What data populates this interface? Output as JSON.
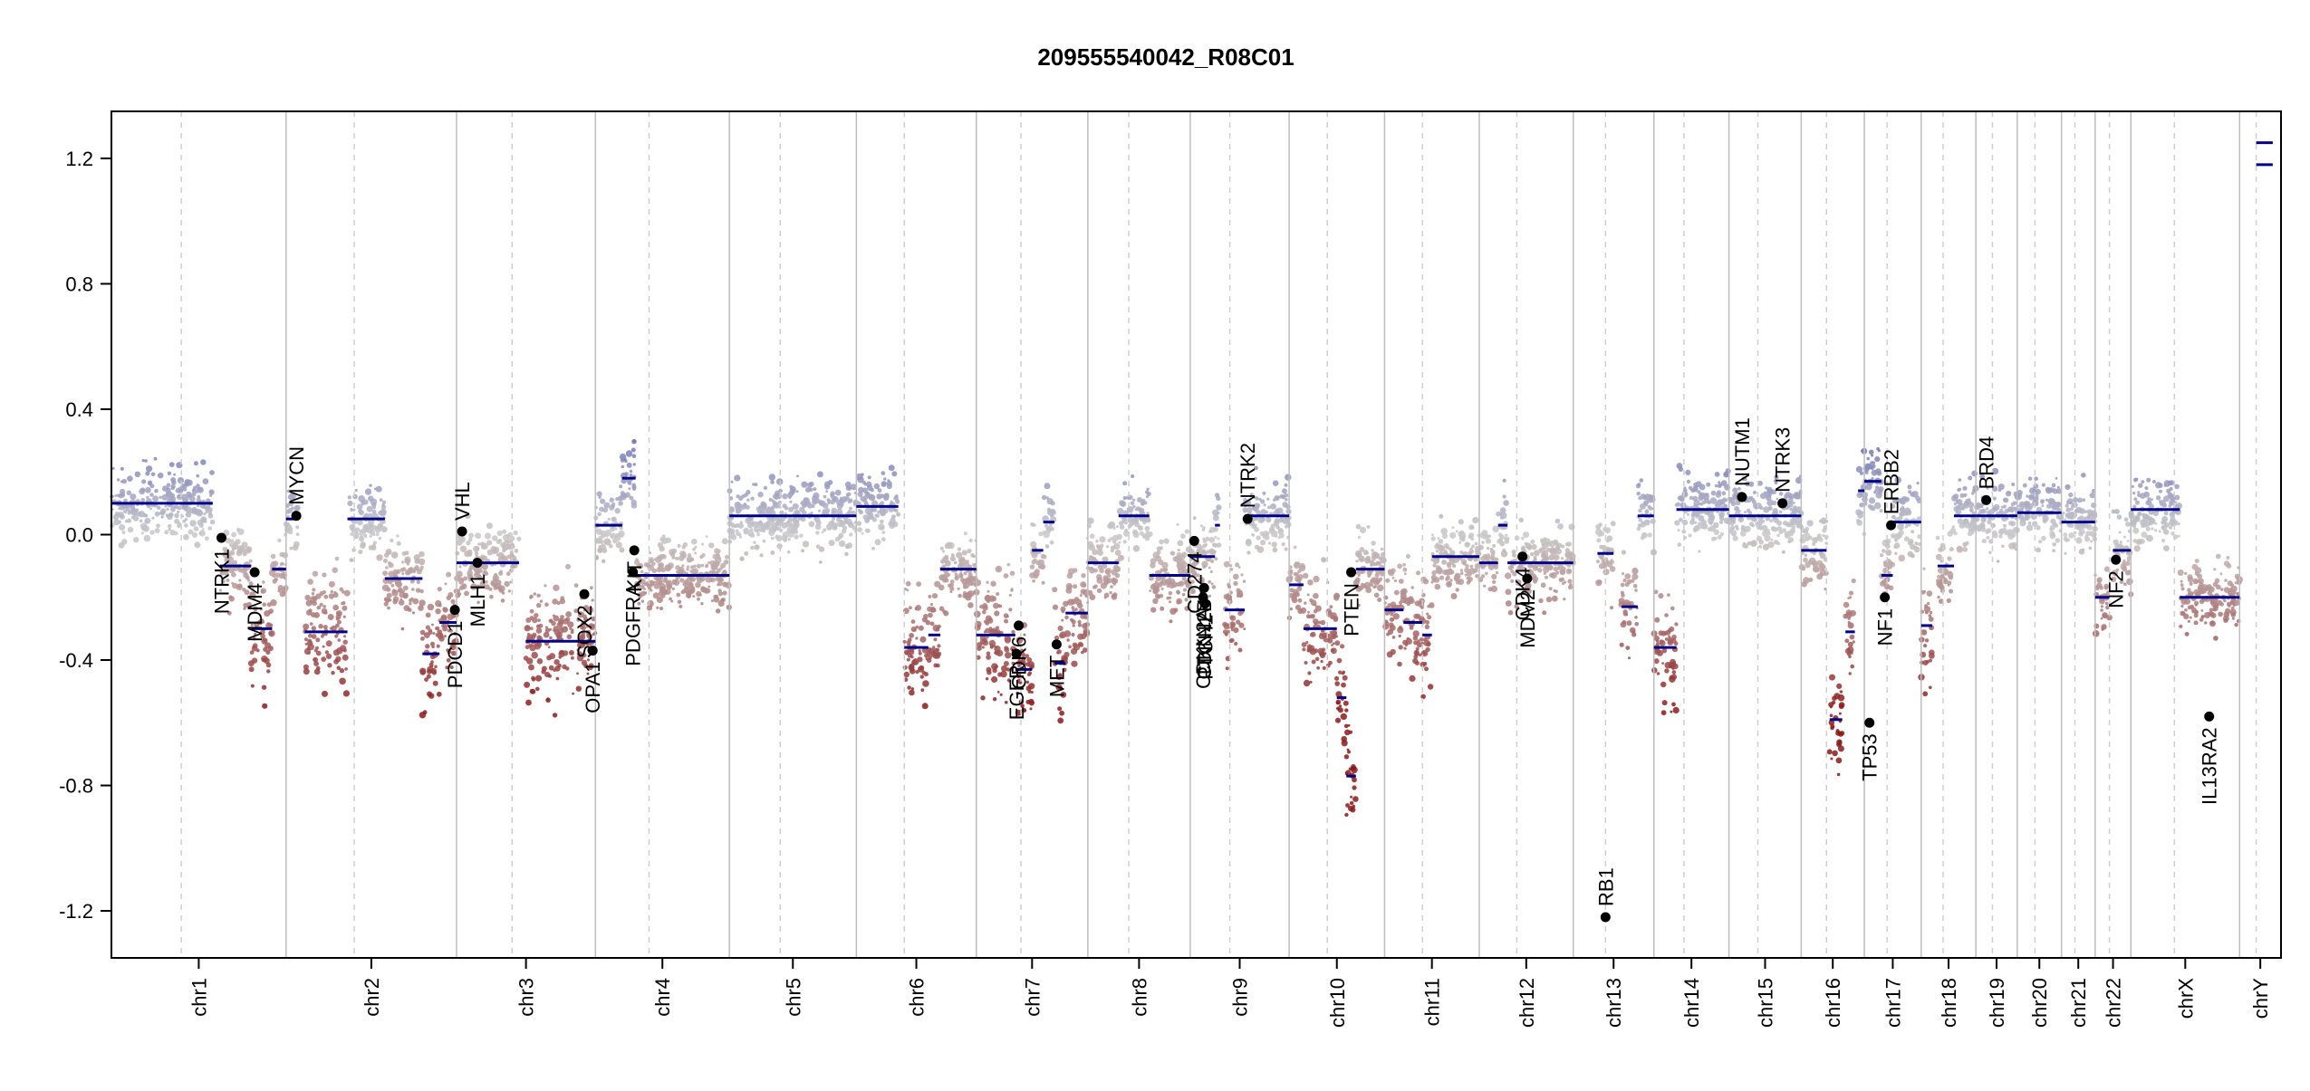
{
  "chart_data": {
    "type": "scatter",
    "title": "209555540042_R08C01",
    "xlabel": "",
    "ylabel": "",
    "ylim": [
      -1.35,
      1.35
    ],
    "yticks": [
      -1.2,
      -0.8,
      -0.4,
      0.0,
      0.4,
      0.8,
      1.2
    ],
    "ytick_labels": [
      "-1.2",
      "-0.8",
      "-0.4",
      "0.0",
      "0.4",
      "0.8",
      "1.2"
    ],
    "grid": false,
    "colors": {
      "positive": "#6f72b8",
      "neutral": "#c9c9c9",
      "negative": "#8b1a1a",
      "segment": "#00008b",
      "gene_point": "#000000",
      "boundary": "#bdbdbd"
    },
    "chromosomes": [
      {
        "name": "chr1",
        "size": 249
      },
      {
        "name": "chr2",
        "size": 243
      },
      {
        "name": "chr3",
        "size": 198
      },
      {
        "name": "chr4",
        "size": 191
      },
      {
        "name": "chr5",
        "size": 181
      },
      {
        "name": "chr6",
        "size": 171
      },
      {
        "name": "chr7",
        "size": 159
      },
      {
        "name": "chr8",
        "size": 146
      },
      {
        "name": "chr9",
        "size": 141
      },
      {
        "name": "chr10",
        "size": 136
      },
      {
        "name": "chr11",
        "size": 135
      },
      {
        "name": "chr12",
        "size": 134
      },
      {
        "name": "chr13",
        "size": 115
      },
      {
        "name": "chr14",
        "size": 107
      },
      {
        "name": "chr15",
        "size": 103
      },
      {
        "name": "chr16",
        "size": 90
      },
      {
        "name": "chr17",
        "size": 81
      },
      {
        "name": "chr18",
        "size": 78
      },
      {
        "name": "chr19",
        "size": 59
      },
      {
        "name": "chr20",
        "size": 63
      },
      {
        "name": "chr21",
        "size": 48
      },
      {
        "name": "chr22",
        "size": 51
      },
      {
        "name": "chrX",
        "size": 155
      },
      {
        "name": "chrY",
        "size": 59
      }
    ],
    "segments": [
      {
        "chr": "chr1",
        "start": 0.0,
        "end": 0.58,
        "value": 0.1
      },
      {
        "chr": "chr1",
        "start": 0.62,
        "end": 0.8,
        "value": -0.1
      },
      {
        "chr": "chr1",
        "start": 0.8,
        "end": 0.92,
        "value": -0.3
      },
      {
        "chr": "chr1",
        "start": 0.92,
        "end": 1.0,
        "value": -0.11
      },
      {
        "chr": "chr2",
        "start": 0.0,
        "end": 0.07,
        "value": 0.05
      },
      {
        "chr": "chr2",
        "start": 0.11,
        "end": 0.36,
        "value": -0.31
      },
      {
        "chr": "chr2",
        "start": 0.36,
        "end": 0.58,
        "value": 0.05
      },
      {
        "chr": "chr2",
        "start": 0.58,
        "end": 0.8,
        "value": -0.14
      },
      {
        "chr": "chr2",
        "start": 0.8,
        "end": 0.9,
        "value": -0.38
      },
      {
        "chr": "chr2",
        "start": 0.9,
        "end": 1.0,
        "value": -0.28
      },
      {
        "chr": "chr3",
        "start": 0.0,
        "end": 0.45,
        "value": -0.09
      },
      {
        "chr": "chr3",
        "start": 0.5,
        "end": 1.0,
        "value": -0.34
      },
      {
        "chr": "chr4",
        "start": 0.0,
        "end": 0.2,
        "value": 0.03
      },
      {
        "chr": "chr4",
        "start": 0.2,
        "end": 0.3,
        "value": 0.18
      },
      {
        "chr": "chr4",
        "start": 0.3,
        "end": 1.0,
        "value": -0.13
      },
      {
        "chr": "chr5",
        "start": 0.0,
        "end": 1.0,
        "value": 0.06
      },
      {
        "chr": "chr6",
        "start": 0.0,
        "end": 0.35,
        "value": 0.09
      },
      {
        "chr": "chr6",
        "start": 0.4,
        "end": 0.6,
        "value": -0.36
      },
      {
        "chr": "chr6",
        "start": 0.6,
        "end": 0.7,
        "value": -0.32
      },
      {
        "chr": "chr6",
        "start": 0.7,
        "end": 1.0,
        "value": -0.11
      },
      {
        "chr": "chr7",
        "start": 0.0,
        "end": 0.35,
        "value": -0.32
      },
      {
        "chr": "chr7",
        "start": 0.35,
        "end": 0.5,
        "value": -0.43
      },
      {
        "chr": "chr7",
        "start": 0.5,
        "end": 0.6,
        "value": -0.05
      },
      {
        "chr": "chr7",
        "start": 0.6,
        "end": 0.7,
        "value": 0.04
      },
      {
        "chr": "chr7",
        "start": 0.7,
        "end": 0.8,
        "value": -0.41
      },
      {
        "chr": "chr7",
        "start": 0.8,
        "end": 1.0,
        "value": -0.25
      },
      {
        "chr": "chr8",
        "start": 0.0,
        "end": 0.3,
        "value": -0.09
      },
      {
        "chr": "chr8",
        "start": 0.3,
        "end": 0.6,
        "value": 0.06
      },
      {
        "chr": "chr8",
        "start": 0.6,
        "end": 1.0,
        "value": -0.13
      },
      {
        "chr": "chr9",
        "start": 0.0,
        "end": 0.25,
        "value": -0.07
      },
      {
        "chr": "chr9",
        "start": 0.25,
        "end": 0.3,
        "value": 0.03
      },
      {
        "chr": "chr9",
        "start": 0.35,
        "end": 0.55,
        "value": -0.24
      },
      {
        "chr": "chr9",
        "start": 0.55,
        "end": 1.0,
        "value": 0.06
      },
      {
        "chr": "chr10",
        "start": 0.0,
        "end": 0.15,
        "value": -0.16
      },
      {
        "chr": "chr10",
        "start": 0.15,
        "end": 0.5,
        "value": -0.3
      },
      {
        "chr": "chr10",
        "start": 0.5,
        "end": 0.6,
        "value": -0.52
      },
      {
        "chr": "chr10",
        "start": 0.6,
        "end": 0.7,
        "value": -0.77
      },
      {
        "chr": "chr10",
        "start": 0.7,
        "end": 1.0,
        "value": -0.11
      },
      {
        "chr": "chr11",
        "start": 0.0,
        "end": 0.2,
        "value": -0.24
      },
      {
        "chr": "chr11",
        "start": 0.2,
        "end": 0.4,
        "value": -0.28
      },
      {
        "chr": "chr11",
        "start": 0.4,
        "end": 0.5,
        "value": -0.32
      },
      {
        "chr": "chr11",
        "start": 0.5,
        "end": 1.0,
        "value": -0.07
      },
      {
        "chr": "chr12",
        "start": 0.0,
        "end": 0.2,
        "value": -0.09
      },
      {
        "chr": "chr12",
        "start": 0.2,
        "end": 0.3,
        "value": 0.03
      },
      {
        "chr": "chr12",
        "start": 0.3,
        "end": 1.0,
        "value": -0.09
      },
      {
        "chr": "chr13",
        "start": 0.3,
        "end": 0.5,
        "value": -0.06
      },
      {
        "chr": "chr13",
        "start": 0.6,
        "end": 0.8,
        "value": -0.23
      },
      {
        "chr": "chr13",
        "start": 0.8,
        "end": 1.0,
        "value": 0.06
      },
      {
        "chr": "chr14",
        "start": 0.0,
        "end": 0.3,
        "value": -0.36
      },
      {
        "chr": "chr14",
        "start": 0.3,
        "end": 1.0,
        "value": 0.08
      },
      {
        "chr": "chr15",
        "start": 0.0,
        "end": 0.2,
        "value": 0.06
      },
      {
        "chr": "chr15",
        "start": 0.2,
        "end": 1.0,
        "value": 0.06
      },
      {
        "chr": "chr16",
        "start": 0.0,
        "end": 0.4,
        "value": -0.05
      },
      {
        "chr": "chr16",
        "start": 0.45,
        "end": 0.65,
        "value": -0.59
      },
      {
        "chr": "chr16",
        "start": 0.7,
        "end": 0.85,
        "value": -0.31
      },
      {
        "chr": "chr16",
        "start": 0.9,
        "end": 1.0,
        "value": 0.14
      },
      {
        "chr": "chr17",
        "start": 0.0,
        "end": 0.3,
        "value": 0.17
      },
      {
        "chr": "chr17",
        "start": 0.3,
        "end": 0.5,
        "value": -0.13
      },
      {
        "chr": "chr17",
        "start": 0.5,
        "end": 1.0,
        "value": 0.04
      },
      {
        "chr": "chr18",
        "start": 0.0,
        "end": 0.2,
        "value": -0.29
      },
      {
        "chr": "chr18",
        "start": 0.3,
        "end": 0.6,
        "value": -0.1
      },
      {
        "chr": "chr18",
        "start": 0.6,
        "end": 1.0,
        "value": 0.06
      },
      {
        "chr": "chr19",
        "start": 0.0,
        "end": 1.0,
        "value": 0.06
      },
      {
        "chr": "chr20",
        "start": 0.0,
        "end": 1.0,
        "value": 0.07
      },
      {
        "chr": "chr21",
        "start": 0.0,
        "end": 1.0,
        "value": 0.04
      },
      {
        "chr": "chr22",
        "start": 0.0,
        "end": 0.4,
        "value": -0.2
      },
      {
        "chr": "chr22",
        "start": 0.5,
        "end": 1.0,
        "value": -0.05
      },
      {
        "chr": "chrX",
        "start": 0.0,
        "end": 0.45,
        "value": 0.08
      },
      {
        "chr": "chrX",
        "start": 0.45,
        "end": 1.0,
        "value": -0.2
      },
      {
        "chr": "chrY",
        "start": 0.4,
        "end": 0.8,
        "value": 1.25
      },
      {
        "chr": "chrY",
        "start": 0.4,
        "end": 0.8,
        "value": 1.18
      }
    ],
    "genes": [
      {
        "name": "NTRK1",
        "chr": "chr1",
        "pos": 0.63,
        "value": -0.01,
        "label_side": "below"
      },
      {
        "name": "MDM4",
        "chr": "chr1",
        "pos": 0.82,
        "value": -0.12,
        "label_side": "below"
      },
      {
        "name": "MYCN",
        "chr": "chr2",
        "pos": 0.06,
        "value": 0.06,
        "label_side": "above"
      },
      {
        "name": "PDCD1",
        "chr": "chr2",
        "pos": 0.99,
        "value": -0.24,
        "label_side": "below"
      },
      {
        "name": "VHL",
        "chr": "chr3",
        "pos": 0.04,
        "value": 0.01,
        "label_side": "above"
      },
      {
        "name": "MLH1",
        "chr": "chr3",
        "pos": 0.15,
        "value": -0.09,
        "label_side": "below"
      },
      {
        "name": "SOX2",
        "chr": "chr3",
        "pos": 0.92,
        "value": -0.19,
        "label_side": "below"
      },
      {
        "name": "OPA1",
        "chr": "chr3",
        "pos": 0.98,
        "value": -0.37,
        "label_side": "below"
      },
      {
        "name": "PDGFRA",
        "chr": "chr4",
        "pos": 0.28,
        "value": -0.12,
        "label_side": "below"
      },
      {
        "name": "KIT",
        "chr": "chr4",
        "pos": 0.29,
        "value": -0.05,
        "label_side": "below"
      },
      {
        "name": "EGFR",
        "chr": "chr7",
        "pos": 0.36,
        "value": -0.38,
        "label_side": "below"
      },
      {
        "name": "CDK6",
        "chr": "chr7",
        "pos": 0.38,
        "value": -0.29,
        "label_side": "below"
      },
      {
        "name": "MET",
        "chr": "chr7",
        "pos": 0.72,
        "value": -0.35,
        "label_side": "below"
      },
      {
        "name": "CDKN2A",
        "chr": "chr9",
        "pos": 0.13,
        "value": -0.2,
        "label_side": "below"
      },
      {
        "name": "CDKN2B",
        "chr": "chr9",
        "pos": 0.14,
        "value": -0.17,
        "label_side": "below"
      },
      {
        "name": "PTCH1",
        "chr": "chr9",
        "pos": 0.15,
        "value": -0.22,
        "label_side": "below"
      },
      {
        "name": "CD274",
        "chr": "chr9",
        "pos": 0.04,
        "value": -0.02,
        "label_side": "below"
      },
      {
        "name": "NTRK2",
        "chr": "chr9",
        "pos": 0.58,
        "value": 0.05,
        "label_side": "above"
      },
      {
        "name": "PTEN",
        "chr": "chr10",
        "pos": 0.65,
        "value": -0.12,
        "label_side": "below"
      },
      {
        "name": "CDK4",
        "chr": "chr12",
        "pos": 0.46,
        "value": -0.07,
        "label_side": "below"
      },
      {
        "name": "MDM2",
        "chr": "chr12",
        "pos": 0.51,
        "value": -0.14,
        "label_side": "below"
      },
      {
        "name": "RB1",
        "chr": "chr13",
        "pos": 0.4,
        "value": -1.22,
        "label_side": "above"
      },
      {
        "name": "NUTM1",
        "chr": "chr15",
        "pos": 0.18,
        "value": 0.12,
        "label_side": "above"
      },
      {
        "name": "NTRK3",
        "chr": "chr15",
        "pos": 0.74,
        "value": 0.1,
        "label_side": "above"
      },
      {
        "name": "TP53",
        "chr": "chr17",
        "pos": 0.09,
        "value": -0.6,
        "label_side": "below"
      },
      {
        "name": "NF1",
        "chr": "chr17",
        "pos": 0.36,
        "value": -0.2,
        "label_side": "below"
      },
      {
        "name": "ERBB2",
        "chr": "chr17",
        "pos": 0.47,
        "value": 0.03,
        "label_side": "above"
      },
      {
        "name": "BRD4",
        "chr": "chr19",
        "pos": 0.25,
        "value": 0.11,
        "label_side": "above"
      },
      {
        "name": "NF2",
        "chr": "chr22",
        "pos": 0.58,
        "value": -0.08,
        "label_side": "below"
      },
      {
        "name": "IL13RA2",
        "chr": "chrX",
        "pos": 0.72,
        "value": -0.58,
        "label_side": "below"
      }
    ]
  }
}
